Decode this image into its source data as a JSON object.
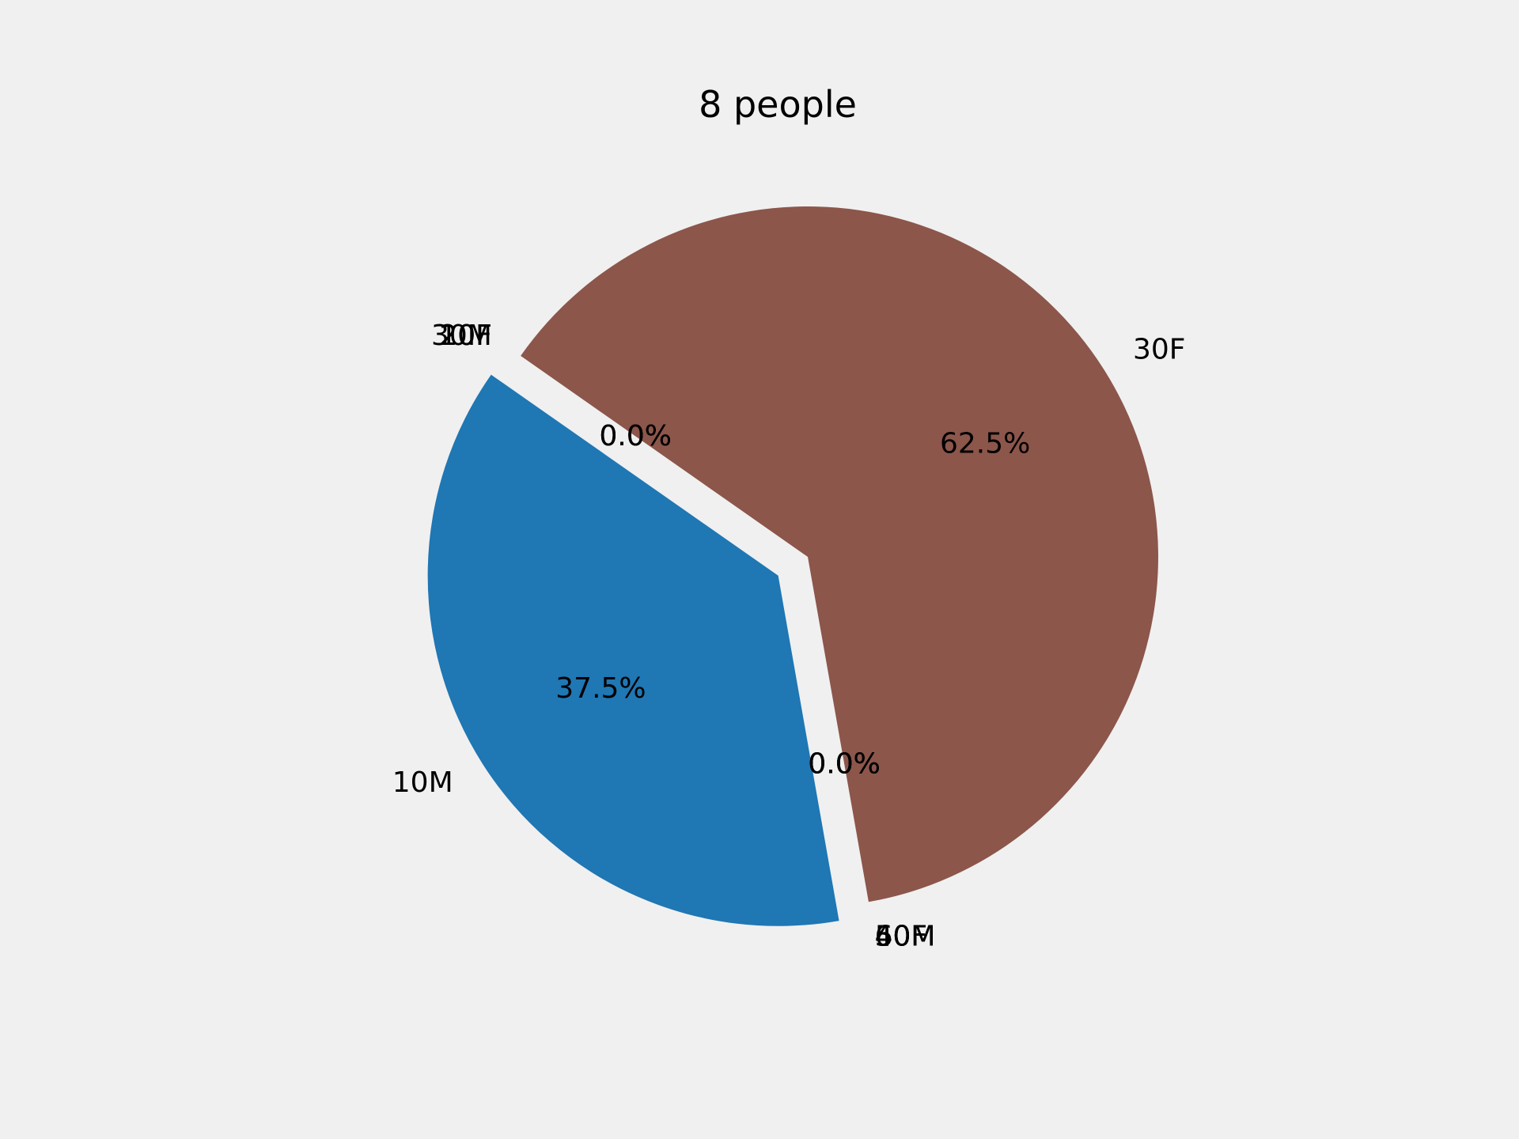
{
  "chart_data": {
    "type": "pie",
    "title": "8 people",
    "start_angle_deg": 145,
    "counterclockwise": true,
    "slices": [
      {
        "label": "10M",
        "value": 3,
        "percent_label": "37.5%",
        "color": "#1f77b4",
        "exploded": true
      },
      {
        "label": "40M",
        "value": 0,
        "percent_label": "0.0%",
        "color": "#ff7f0e",
        "exploded": false
      },
      {
        "label": "50M",
        "value": 0,
        "percent_label": "0.0%",
        "color": "#2ca02c",
        "exploded": false
      },
      {
        "label": "60M",
        "value": 0,
        "percent_label": "0.0%",
        "color": "#d62728",
        "exploded": false
      },
      {
        "label": "40F",
        "value": 0,
        "percent_label": "0.0%",
        "color": "#9467bd",
        "exploded": false
      },
      {
        "label": "30F",
        "value": 5,
        "percent_label": "62.5%",
        "color": "#8c564b",
        "exploded": false
      },
      {
        "label": "20F",
        "value": 0,
        "percent_label": "0.0%",
        "color": "#e377c2",
        "exploded": false
      },
      {
        "label": "10F",
        "value": 0,
        "percent_label": "0.0%",
        "color": "#7f7f7f",
        "exploded": false
      },
      {
        "label": "30M",
        "value": 0,
        "percent_label": "0.0%",
        "color": "#bcbd22",
        "exploded": false
      }
    ]
  }
}
